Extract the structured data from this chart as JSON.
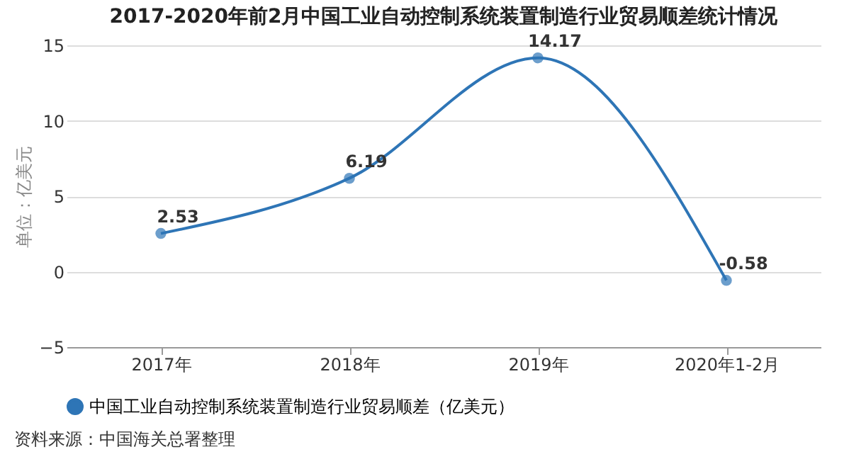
{
  "chart_data": {
    "type": "line",
    "title": "2017-2020年前2月中国工业自动控制系统装置制造行业贸易顺差统计情况",
    "ylabel": "单位：亿美元",
    "categories": [
      "2017年",
      "2018年",
      "2019年",
      "2020年1-2月"
    ],
    "series": [
      {
        "name": "中国工业自动控制系统装置制造行业贸易顺差（亿美元）",
        "color": "#2e75b6",
        "values": [
          2.53,
          6.19,
          14.17,
          -0.58
        ]
      }
    ],
    "ylim": [
      -5,
      15
    ],
    "yticks": [
      -5,
      0,
      5,
      10,
      15
    ],
    "grid": "y",
    "legend": "bottom",
    "marker": "circle",
    "line_style": "solid",
    "data_labels": true,
    "annotations": [
      "资料来源：中国海关总署整理"
    ]
  }
}
